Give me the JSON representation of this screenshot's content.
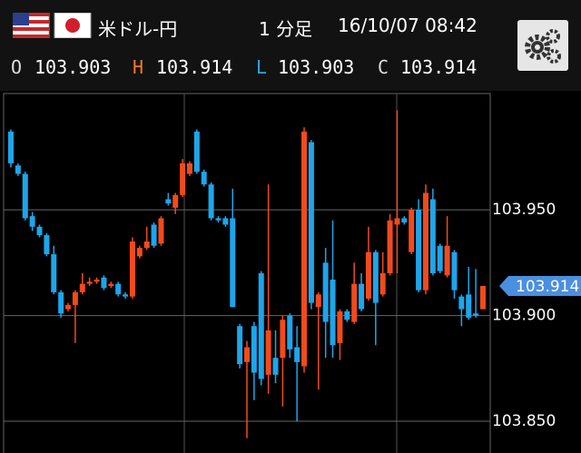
{
  "header": {
    "pair": "米ドル-円",
    "timeframe": "1 分足",
    "datetime": "16/10/07 08:42",
    "ohlc": [
      {
        "label": "O",
        "value": "103.903"
      },
      {
        "label": "H",
        "value": "103.914"
      },
      {
        "label": "L",
        "value": "103.903"
      },
      {
        "label": "C",
        "value": "103.914"
      }
    ]
  },
  "chart_data": {
    "type": "candlestick",
    "up_color": "#f24a1c",
    "down_color": "#1ea5ea",
    "grid": true,
    "ylim": [
      103.835,
      104.005
    ],
    "yticks": [
      {
        "value": 103.85,
        "label": "103.850"
      },
      {
        "value": 103.9,
        "label": "103.900"
      },
      {
        "value": 103.95,
        "label": "103.950"
      }
    ],
    "open": [
      103.987,
      103.971,
      103.967,
      103.947,
      103.942,
      103.938,
      103.929,
      103.911,
      103.903,
      103.905,
      103.911,
      103.915,
      103.916,
      103.918,
      103.914,
      103.915,
      103.91,
      103.909,
      103.928,
      103.932,
      103.943,
      103.934,
      103.955,
      103.951,
      103.957,
      103.967,
      103.987,
      103.968,
      103.962,
      103.946,
      103.946,
      103.946,
      103.895,
      103.878,
      103.895,
      103.92,
      103.872,
      103.88,
      103.88,
      103.9,
      103.885,
      103.876,
      103.982,
      103.904,
      103.925,
      103.917,
      103.887,
      103.902,
      103.897,
      103.915,
      103.908,
      103.93,
      103.91,
      103.92,
      103.943,
      103.946,
      103.93,
      103.95,
      103.912,
      103.955,
      103.933,
      103.919,
      103.93,
      103.909,
      103.91,
      103.901,
      103.903
    ],
    "high": [
      103.988,
      103.972,
      103.968,
      103.949,
      103.943,
      103.939,
      103.933,
      103.912,
      103.906,
      103.912,
      103.92,
      103.918,
      103.918,
      103.919,
      103.916,
      103.916,
      103.911,
      103.937,
      103.933,
      103.942,
      103.944,
      103.947,
      103.958,
      103.958,
      103.974,
      103.973,
      103.988,
      103.969,
      103.963,
      103.947,
      103.947,
      103.96,
      103.896,
      103.888,
      103.897,
      103.921,
      103.962,
      103.893,
      103.9,
      103.901,
      103.895,
      103.989,
      103.983,
      103.911,
      103.932,
      103.945,
      103.903,
      103.903,
      103.925,
      103.92,
      103.942,
      103.931,
      103.93,
      103.948,
      103.997,
      103.947,
      103.951,
      103.955,
      103.962,
      103.96,
      103.934,
      103.947,
      103.931,
      103.91,
      103.923,
      103.922,
      103.914
    ],
    "low": [
      103.97,
      103.966,
      103.945,
      103.94,
      103.937,
      103.928,
      103.91,
      103.899,
      103.902,
      103.887,
      103.91,
      103.914,
      103.915,
      103.912,
      103.913,
      103.909,
      103.908,
      103.908,
      103.927,
      103.931,
      103.932,
      103.933,
      103.952,
      103.948,
      103.956,
      103.966,
      103.967,
      103.961,
      103.945,
      103.944,
      103.942,
      103.904,
      103.875,
      103.842,
      103.86,
      103.867,
      103.863,
      103.868,
      103.857,
      103.88,
      103.85,
      103.873,
      103.903,
      103.865,
      103.88,
      103.88,
      103.879,
      103.897,
      103.896,
      103.902,
      103.907,
      103.886,
      103.909,
      103.919,
      103.92,
      103.943,
      103.929,
      103.911,
      103.91,
      103.919,
      103.92,
      103.918,
      103.908,
      103.895,
      103.898,
      103.899,
      103.903
    ],
    "close": [
      103.972,
      103.967,
      103.946,
      103.942,
      103.938,
      103.929,
      103.911,
      103.901,
      103.905,
      103.911,
      103.915,
      103.916,
      103.917,
      103.913,
      103.915,
      103.91,
      103.909,
      103.935,
      103.932,
      103.935,
      103.933,
      103.946,
      103.953,
      103.957,
      103.972,
      103.972,
      103.968,
      103.962,
      103.946,
      103.945,
      103.943,
      103.904,
      103.877,
      103.885,
      103.873,
      103.87,
      103.893,
      103.872,
      103.898,
      103.884,
      103.878,
      103.987,
      103.906,
      103.91,
      103.897,
      103.886,
      103.902,
      103.898,
      103.915,
      103.903,
      103.93,
      103.906,
      103.92,
      103.945,
      103.946,
      103.944,
      103.95,
      103.912,
      103.958,
      103.92,
      103.921,
      103.933,
      103.912,
      103.903,
      103.899,
      103.9,
      103.914
    ]
  }
}
